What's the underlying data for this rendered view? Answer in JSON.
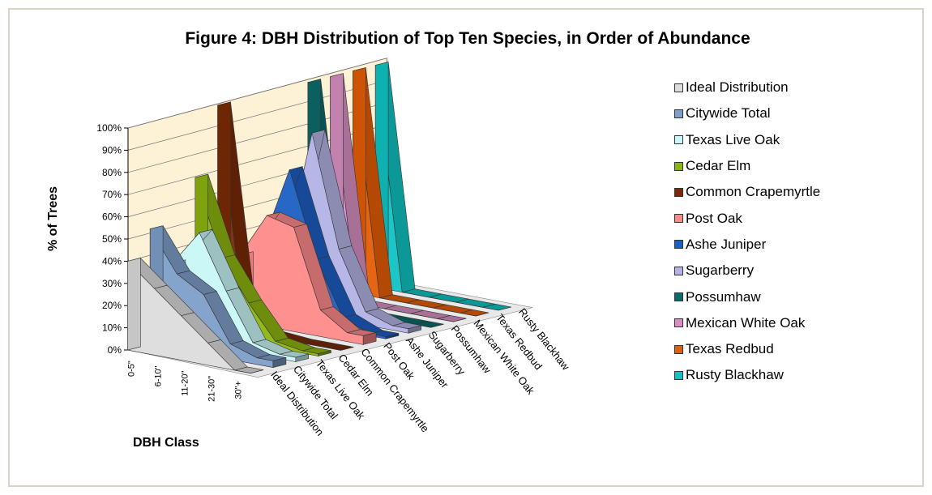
{
  "chart_data": {
    "type": "bar3d",
    "title": "Figure 4: DBH Distribution of Top Ten Species, in Order of Abundance",
    "ylabel": "% of Trees",
    "xlabel": "DBH Class",
    "ylim": [
      0,
      100
    ],
    "y_ticks": [
      "0%",
      "10%",
      "20%",
      "30%",
      "40%",
      "50%",
      "60%",
      "70%",
      "80%",
      "90%",
      "100%"
    ],
    "categories": [
      "0-5\"",
      "6-10\"",
      "11-20\"",
      "21-30\"",
      "30\"+"
    ],
    "grid": true,
    "legend_position": "right",
    "series": [
      {
        "name": "Ideal Distribution",
        "short_label": "Ideal Distribution",
        "color": "#dcdcdc",
        "values": [
          40,
          30,
          20,
          10,
          0
        ]
      },
      {
        "name": "Citywide Total",
        "short_label": "Citywide Total",
        "color": "#7f9fc9",
        "values": [
          52,
          34,
          27,
          7,
          3
        ]
      },
      {
        "name": "Texas Live Oak",
        "short_label": "Texas Live Oak",
        "color": "#c9f7f7",
        "values": [
          34,
          50,
          26,
          5,
          2
        ]
      },
      {
        "name": "Cedar Elm",
        "short_label": "Cedar Elm",
        "color": "#8db511",
        "values": [
          70,
          36,
          18,
          3,
          1
        ]
      },
      {
        "name": "Common Crapemyrtle",
        "short_label": "Common Crapemyrtle",
        "color": "#7a2a06",
        "values": [
          100,
          3,
          1,
          0,
          0
        ]
      },
      {
        "name": "Post Oak",
        "short_label": "Post Oak",
        "color": "#ff8a8a",
        "values": [
          30,
          50,
          47,
          12,
          4
        ]
      },
      {
        "name": "Ashe Juniper",
        "short_label": "Ashe Juniper",
        "color": "#1c5fc3",
        "values": [
          33,
          68,
          30,
          6,
          1
        ]
      },
      {
        "name": "Sugarberry",
        "short_label": "Sugarberry",
        "color": "#b3b3e6",
        "values": [
          25,
          82,
          32,
          6,
          2
        ]
      },
      {
        "name": "Possumhaw",
        "short_label": "Possumhaw",
        "color": "#0d6a6a",
        "values": [
          100,
          0,
          0,
          0,
          0
        ]
      },
      {
        "name": "Mexican White Oak",
        "short_label": "Mexican White Oak",
        "color": "#d98fc2",
        "values": [
          100,
          0,
          0,
          0,
          0
        ]
      },
      {
        "name": "Texas Redbud",
        "short_label": "Texas Redbud",
        "color": "#e55d05",
        "values": [
          100,
          0,
          0,
          0,
          0
        ]
      },
      {
        "name": "Rusty Blackhaw",
        "short_label": "Rusty Blackhaw",
        "color": "#11c3c3",
        "values": [
          100,
          0,
          0,
          0,
          0
        ]
      }
    ]
  }
}
